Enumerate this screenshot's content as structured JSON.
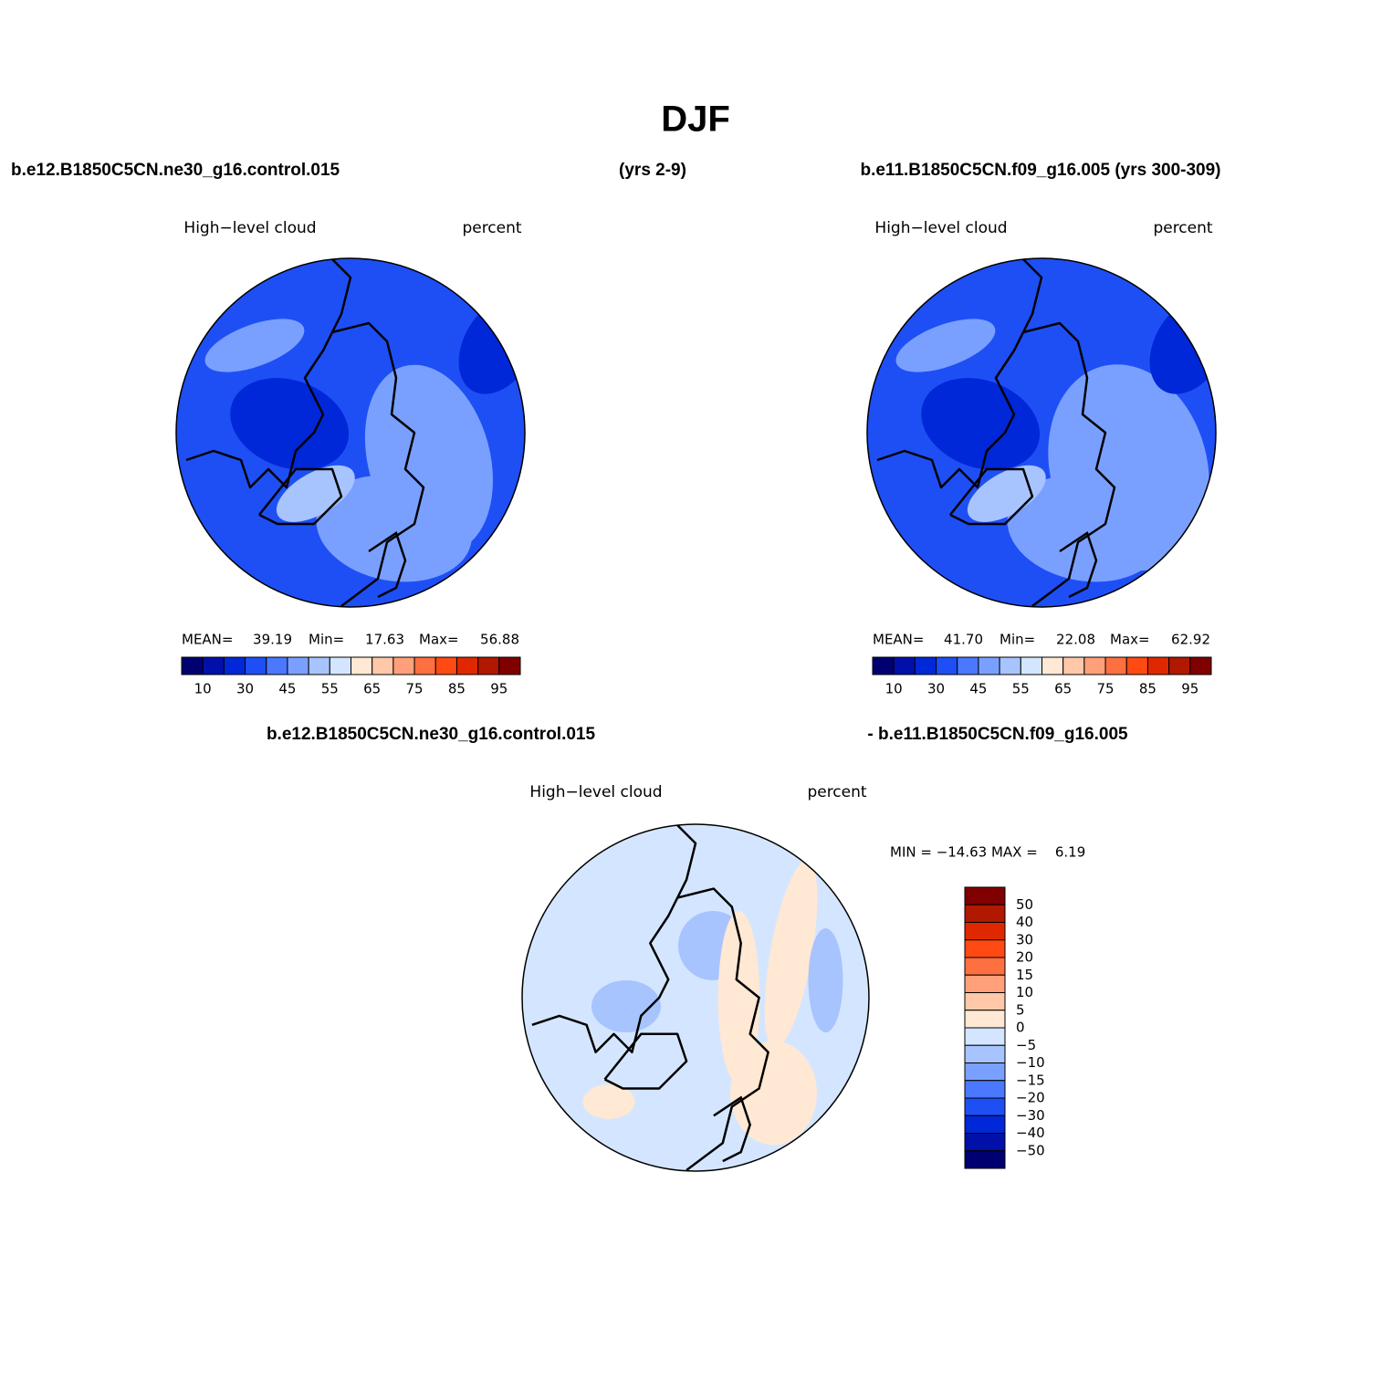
{
  "title": "DJF",
  "header": {
    "left": "b.e12.B1850C5CN.ne30_g16.control.015",
    "middle": "(yrs 2-9)",
    "right": "b.e11.B1850C5CN.f09_g16.005 (yrs 300-309)"
  },
  "colorbar_colors": [
    "#000070",
    "#0010a8",
    "#0028d8",
    "#1e4ff5",
    "#4a78ff",
    "#7aa0ff",
    "#a8c4ff",
    "#d4e6ff",
    "#ffe8d4",
    "#ffc8a8",
    "#ffa07a",
    "#ff7040",
    "#ff4a14",
    "#e02800",
    "#b01800",
    "#800000"
  ],
  "panels": [
    {
      "variable": "High−level cloud",
      "units": "percent",
      "stats": {
        "mean_label": "MEAN=",
        "mean": "39.19",
        "min_label": "Min=",
        "min": "17.63",
        "max_label": "Max=",
        "max": "56.88"
      },
      "colorbar_labels": [
        "10",
        "30",
        "45",
        "55",
        "65",
        "75",
        "85",
        "95"
      ]
    },
    {
      "variable": "High−level cloud",
      "units": "percent",
      "stats": {
        "mean_label": "MEAN=",
        "mean": "41.70",
        "min_label": "Min=",
        "min": "22.08",
        "max_label": "Max=",
        "max": "62.92"
      },
      "colorbar_labels": [
        "10",
        "30",
        "45",
        "55",
        "65",
        "75",
        "85",
        "95"
      ]
    }
  ],
  "diff": {
    "title_left": "b.e12.B1850C5CN.ne30_g16.control.015",
    "title_right": "- b.e11.B1850C5CN.f09_g16.005",
    "variable": "High−level cloud",
    "units": "percent",
    "stats": "MIN = −14.63 MAX =    6.19",
    "colorbar_colors": [
      "#800000",
      "#b01800",
      "#e02800",
      "#ff4a14",
      "#ff7040",
      "#ffa07a",
      "#ffc8a8",
      "#ffe8d4",
      "#d4e6ff",
      "#a8c4ff",
      "#7aa0ff",
      "#4a78ff",
      "#1e4ff5",
      "#0028d8",
      "#0010a8",
      "#000070"
    ],
    "colorbar_labels": [
      "50",
      "40",
      "30",
      "20",
      "15",
      "10",
      "5",
      "0",
      "−5",
      "−10",
      "−15",
      "−20",
      "−30",
      "−40",
      "−50"
    ]
  }
}
